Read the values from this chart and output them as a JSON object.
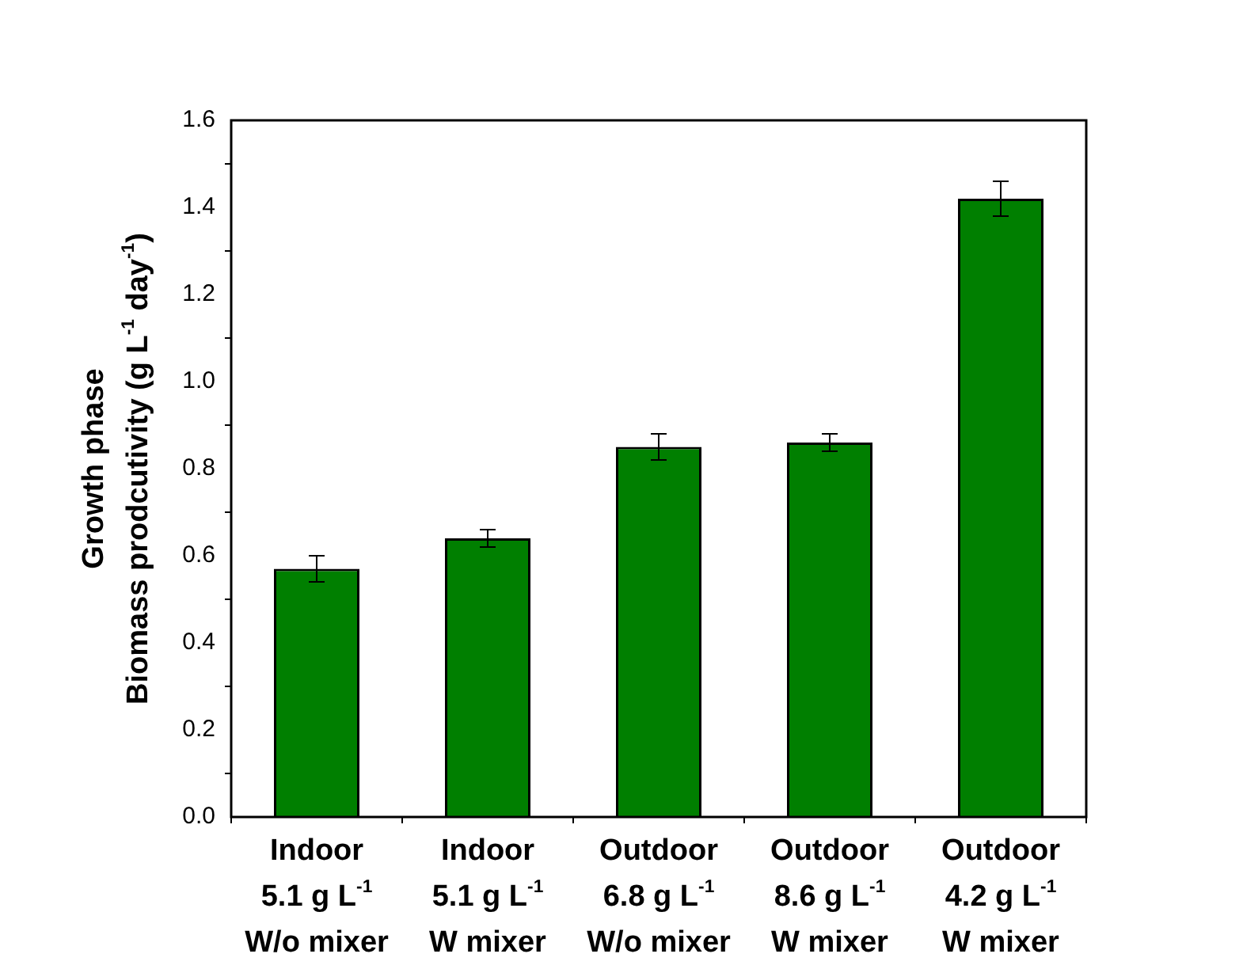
{
  "chart_data": {
    "type": "bar",
    "ylabel": "Growth phase\nBiomass prodcutivity (g L$^{-1}$ day$^{-1}$)",
    "categories": [
      "Indoor\n5.1 g L$^{-1}$\nW/o mixer",
      "Indoor\n5.1 g L$^{-1}$\nW mixer",
      "Outdoor\n6.8 g L$^{-1}$\nW/o mixer",
      "Outdoor\n8.6 g L$^{-1}$\nW mixer",
      "Outdoor\n4.2 g L$^{-1}$\nW mixer"
    ],
    "values": [
      0.57,
      0.64,
      0.85,
      0.86,
      1.42
    ],
    "errors": [
      0.03,
      0.02,
      0.03,
      0.02,
      0.04
    ],
    "color": "#007f00",
    "ylim": [
      0,
      1.6
    ],
    "yticks": [
      {
        "value": 0,
        "label": "0.0"
      },
      0.2,
      0.4,
      0.6,
      0.8,
      {
        "value": 1,
        "label": "1.0"
      },
      1.2,
      1.4,
      1.6
    ],
    "grid": false,
    "legend": false
  }
}
